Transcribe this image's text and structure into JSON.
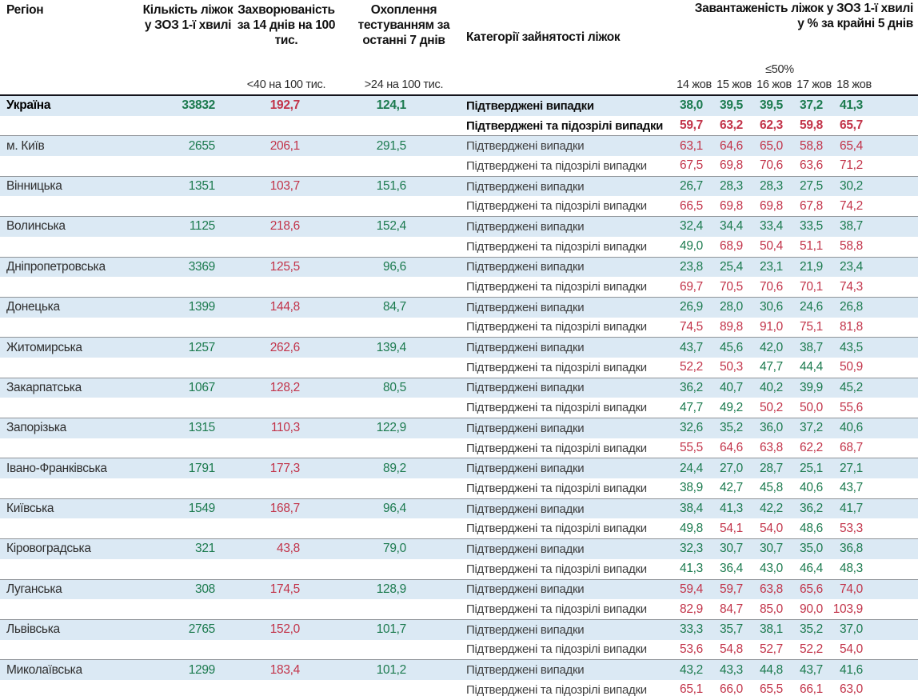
{
  "header": {
    "region": "Регіон",
    "beds": "Кількість ліжок у ЗОЗ 1-ї хвилі",
    "incidence": "Захворюваність за 14 днів на 100 тис.",
    "incidence_threshold": "<40 на 100 тис.",
    "testing": "Охоплення тестуванням за останні 7 днів",
    "testing_threshold": ">24 на 100 тис.",
    "category": "Категорії зайнятості ліжок",
    "occupancy": "Завантаженість ліжок у ЗОЗ 1-ї хвилі у % за крайні 5 днів",
    "occupancy_threshold": "≤50%",
    "dates": [
      "14 жов",
      "15 жов",
      "16 жов",
      "17 жов",
      "18 жов"
    ]
  },
  "row_labels": {
    "confirmed": "Підтверджені випадки",
    "confirmed_suspected": "Підтверджені та підозрілі випадки"
  },
  "colors": {
    "green": "#1b7a4e",
    "red": "#c23349",
    "row_blue": "#dbe9f4",
    "divider": "#8f9499",
    "dark_border": "#14141c"
  },
  "value_rule": "occupancy values >= 50 are red, below 50 green; incidence shown red; beds and testing shown green",
  "rows": [
    {
      "region": "Україна",
      "bold": true,
      "beds": "33832",
      "incidence": "192,7",
      "testing": "124,1",
      "confirmed": [
        "38,0",
        "39,5",
        "39,5",
        "37,2",
        "41,3"
      ],
      "suspected": [
        "59,7",
        "63,2",
        "62,3",
        "59,8",
        "65,7"
      ]
    },
    {
      "region": "м. Київ",
      "bold": false,
      "beds": "2655",
      "incidence": "206,1",
      "testing": "291,5",
      "confirmed": [
        "63,1",
        "64,6",
        "65,0",
        "58,8",
        "65,4"
      ],
      "suspected": [
        "67,5",
        "69,8",
        "70,6",
        "63,6",
        "71,2"
      ]
    },
    {
      "region": "Вінницька",
      "bold": false,
      "beds": "1351",
      "incidence": "103,7",
      "testing": "151,6",
      "confirmed": [
        "26,7",
        "28,3",
        "28,3",
        "27,5",
        "30,2"
      ],
      "suspected": [
        "66,5",
        "69,8",
        "69,8",
        "67,8",
        "74,2"
      ]
    },
    {
      "region": "Волинська",
      "bold": false,
      "beds": "1125",
      "incidence": "218,6",
      "testing": "152,4",
      "confirmed": [
        "32,4",
        "34,4",
        "33,4",
        "33,5",
        "38,7"
      ],
      "suspected": [
        "49,0",
        "68,9",
        "50,4",
        "51,1",
        "58,8"
      ]
    },
    {
      "region": "Дніпропетровська",
      "bold": false,
      "beds": "3369",
      "incidence": "125,5",
      "testing": "96,6",
      "confirmed": [
        "23,8",
        "25,4",
        "23,1",
        "21,9",
        "23,4"
      ],
      "suspected": [
        "69,7",
        "70,5",
        "70,6",
        "70,1",
        "74,3"
      ]
    },
    {
      "region": "Донецька",
      "bold": false,
      "beds": "1399",
      "incidence": "144,8",
      "testing": "84,7",
      "confirmed": [
        "26,9",
        "28,0",
        "30,6",
        "24,6",
        "26,8"
      ],
      "suspected": [
        "74,5",
        "89,8",
        "91,0",
        "75,1",
        "81,8"
      ]
    },
    {
      "region": "Житомирська",
      "bold": false,
      "beds": "1257",
      "incidence": "262,6",
      "testing": "139,4",
      "confirmed": [
        "43,7",
        "45,6",
        "42,0",
        "38,7",
        "43,5"
      ],
      "suspected": [
        "52,2",
        "50,3",
        "47,7",
        "44,4",
        "50,9"
      ]
    },
    {
      "region": "Закарпатська",
      "bold": false,
      "beds": "1067",
      "incidence": "128,2",
      "testing": "80,5",
      "confirmed": [
        "36,2",
        "40,7",
        "40,2",
        "39,9",
        "45,2"
      ],
      "suspected": [
        "47,7",
        "49,2",
        "50,2",
        "50,0",
        "55,6"
      ]
    },
    {
      "region": "Запорізька",
      "bold": false,
      "beds": "1315",
      "incidence": "110,3",
      "testing": "122,9",
      "confirmed": [
        "32,6",
        "35,2",
        "36,0",
        "37,2",
        "40,6"
      ],
      "suspected": [
        "55,5",
        "64,6",
        "63,8",
        "62,2",
        "68,7"
      ]
    },
    {
      "region": "Івано-Франківська",
      "bold": false,
      "beds": "1791",
      "incidence": "177,3",
      "testing": "89,2",
      "confirmed": [
        "24,4",
        "27,0",
        "28,7",
        "25,1",
        "27,1"
      ],
      "suspected": [
        "38,9",
        "42,7",
        "45,8",
        "40,6",
        "43,7"
      ]
    },
    {
      "region": "Київська",
      "bold": false,
      "beds": "1549",
      "incidence": "168,7",
      "testing": "96,4",
      "confirmed": [
        "38,4",
        "41,3",
        "42,2",
        "36,2",
        "41,7"
      ],
      "suspected": [
        "49,8",
        "54,1",
        "54,0",
        "48,6",
        "53,3"
      ]
    },
    {
      "region": "Кіровоградська",
      "bold": false,
      "beds": "321",
      "incidence": "43,8",
      "testing": "79,0",
      "confirmed": [
        "32,3",
        "30,7",
        "30,7",
        "35,0",
        "36,8"
      ],
      "suspected": [
        "41,3",
        "36,4",
        "43,0",
        "46,4",
        "48,3"
      ]
    },
    {
      "region": "Луганська",
      "bold": false,
      "beds": "308",
      "incidence": "174,5",
      "testing": "128,9",
      "confirmed": [
        "59,4",
        "59,7",
        "63,8",
        "65,6",
        "74,0"
      ],
      "suspected": [
        "82,9",
        "84,7",
        "85,0",
        "90,0",
        "103,9"
      ]
    },
    {
      "region": "Львівська",
      "bold": false,
      "beds": "2765",
      "incidence": "152,0",
      "testing": "101,7",
      "confirmed": [
        "33,3",
        "35,7",
        "38,1",
        "35,2",
        "37,0"
      ],
      "suspected": [
        "53,6",
        "54,8",
        "52,7",
        "52,2",
        "54,0"
      ]
    },
    {
      "region": "Миколаївська",
      "bold": false,
      "beds": "1299",
      "incidence": "183,4",
      "testing": "101,2",
      "confirmed": [
        "43,2",
        "43,3",
        "44,8",
        "43,7",
        "41,6"
      ],
      "suspected": [
        "65,1",
        "66,0",
        "65,5",
        "66,1",
        "63,0"
      ]
    }
  ]
}
